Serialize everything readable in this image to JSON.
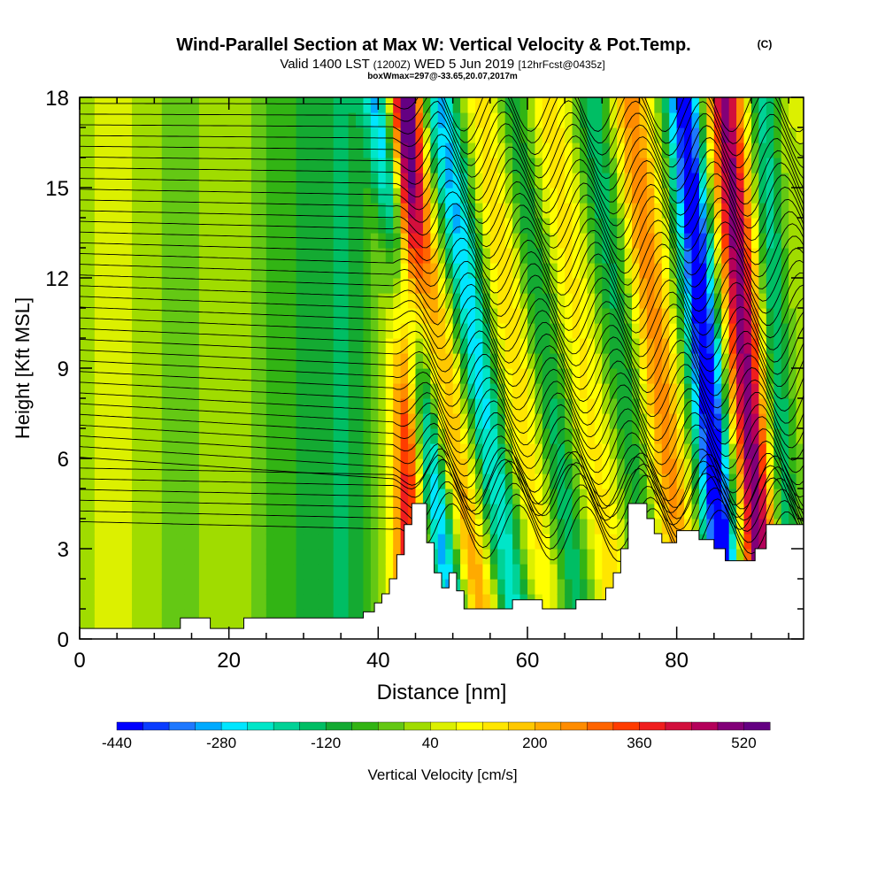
{
  "chart_data": {
    "type": "heatmap",
    "title": "Wind-Parallel Section at Max W: Vertical Velocity & Pot.Temp.",
    "title_mark": "(C)",
    "subtitle_parts": [
      "Valid 1400 LST",
      "(1200Z)",
      "WED 5 Jun 2019",
      "[12hrFcst@0435z]"
    ],
    "subtitle2": "boxWmax=297@-33.65,20.07,2017m",
    "xlabel": "Distance [nm]",
    "ylabel": "Height [Kft MSL]",
    "xlim": [
      0,
      97
    ],
    "ylim": [
      0,
      18
    ],
    "x_ticks": [
      0,
      20,
      40,
      60,
      80
    ],
    "y_ticks": [
      0,
      3,
      6,
      9,
      12,
      15,
      18
    ],
    "colorbar": {
      "label": "Vertical Velocity [cm/s]",
      "min": -440,
      "max": 560,
      "step": 40,
      "tick_values": [
        -440,
        -280,
        -120,
        40,
        200,
        360,
        520
      ],
      "colors": [
        "#0000ff",
        "#0a3cff",
        "#1e78ff",
        "#00aaff",
        "#00e6ff",
        "#00e6c8",
        "#00d296",
        "#00be64",
        "#14aa32",
        "#32b414",
        "#64c814",
        "#a0dc00",
        "#dcf000",
        "#ffff00",
        "#ffe600",
        "#ffc800",
        "#ffaa00",
        "#ff8c00",
        "#ff6400",
        "#ff3c00",
        "#f01e1e",
        "#d20f3c",
        "#b4005a",
        "#820078",
        "#640082"
      ]
    },
    "vertical_velocity_bands": [
      {
        "x_center": 12,
        "x_width": 7,
        "tilt": 0,
        "value": 20
      },
      {
        "x_center": 27,
        "x_width": 6,
        "tilt": 0,
        "value": -60
      },
      {
        "x_center": 36,
        "x_width": 4,
        "tilt": 0,
        "value": -110
      },
      {
        "x_center": 44,
        "x_width": 2,
        "tilt": 0,
        "value": 380
      },
      {
        "x_center": 47,
        "x_width": 2,
        "tilt": 0.6,
        "value": -300
      },
      {
        "x_center": 51,
        "x_width": 3,
        "tilt": 0.6,
        "value": 280
      },
      {
        "x_center": 55,
        "x_width": 3,
        "tilt": 0.6,
        "value": -300
      },
      {
        "x_center": 60,
        "x_width": 3,
        "tilt": 0.55,
        "value": 150
      },
      {
        "x_center": 64,
        "x_width": 2.5,
        "tilt": 0.5,
        "value": -150
      },
      {
        "x_center": 69,
        "x_width": 3,
        "tilt": 0.5,
        "value": 160
      },
      {
        "x_center": 74,
        "x_width": 2.5,
        "tilt": 0.45,
        "value": -130
      },
      {
        "x_center": 79,
        "x_width": 2.5,
        "tilt": 0.45,
        "value": 240
      },
      {
        "x_center": 85,
        "x_width": 2.5,
        "tilt": 0.35,
        "value": -440
      },
      {
        "x_center": 90,
        "x_width": 2.5,
        "tilt": 0.3,
        "value": 520
      },
      {
        "x_center": 94,
        "x_width": 2,
        "tilt": 0.2,
        "value": -200
      }
    ],
    "background_value": 20,
    "terrain_kft": [
      [
        0,
        0.35
      ],
      [
        13.5,
        0.35
      ],
      [
        13.5,
        0.7
      ],
      [
        17.5,
        0.7
      ],
      [
        17.5,
        0.35
      ],
      [
        22,
        0.35
      ],
      [
        22,
        0.7
      ],
      [
        38,
        0.7
      ],
      [
        38,
        0.9
      ],
      [
        39.5,
        0.9
      ],
      [
        39.5,
        1.2
      ],
      [
        40.5,
        1.2
      ],
      [
        40.5,
        1.5
      ],
      [
        41.5,
        1.5
      ],
      [
        41.5,
        2.0
      ],
      [
        42.5,
        2.0
      ],
      [
        42.5,
        2.8
      ],
      [
        43.5,
        2.8
      ],
      [
        43.5,
        3.8
      ],
      [
        44.5,
        3.8
      ],
      [
        44.5,
        4.5
      ],
      [
        46.5,
        4.5
      ],
      [
        46.5,
        3.2
      ],
      [
        47.5,
        3.2
      ],
      [
        47.5,
        2.2
      ],
      [
        48.5,
        2.2
      ],
      [
        48.5,
        1.7
      ],
      [
        49.5,
        1.7
      ],
      [
        49.5,
        2.2
      ],
      [
        50.5,
        2.2
      ],
      [
        50.5,
        1.6
      ],
      [
        51.5,
        1.6
      ],
      [
        51.5,
        1.0
      ],
      [
        58,
        1.0
      ],
      [
        58,
        1.3
      ],
      [
        62,
        1.3
      ],
      [
        62,
        1.0
      ],
      [
        66.5,
        1.0
      ],
      [
        66.5,
        1.3
      ],
      [
        70.5,
        1.3
      ],
      [
        70.5,
        1.7
      ],
      [
        71.5,
        1.7
      ],
      [
        71.5,
        2.2
      ],
      [
        72.5,
        2.2
      ],
      [
        72.5,
        3.0
      ],
      [
        73.5,
        3.0
      ],
      [
        73.5,
        4.5
      ],
      [
        76,
        4.5
      ],
      [
        76,
        4.0
      ],
      [
        77,
        4.0
      ],
      [
        77,
        3.5
      ],
      [
        78,
        3.5
      ],
      [
        78,
        3.2
      ],
      [
        80,
        3.2
      ],
      [
        80,
        3.6
      ],
      [
        83,
        3.6
      ],
      [
        83,
        3.3
      ],
      [
        85,
        3.3
      ],
      [
        85,
        3.0
      ],
      [
        86.5,
        3.0
      ],
      [
        86.5,
        2.6
      ],
      [
        90.5,
        2.6
      ],
      [
        90.5,
        3.0
      ],
      [
        92,
        3.0
      ],
      [
        92,
        3.8
      ],
      [
        97,
        3.8
      ]
    ],
    "potential_temperature_contours": {
      "count": 40,
      "base_kft": 3.9,
      "top_kft": 17.8,
      "wave_start_x": 42,
      "wave_amplitude_kft": 0.9
    }
  }
}
